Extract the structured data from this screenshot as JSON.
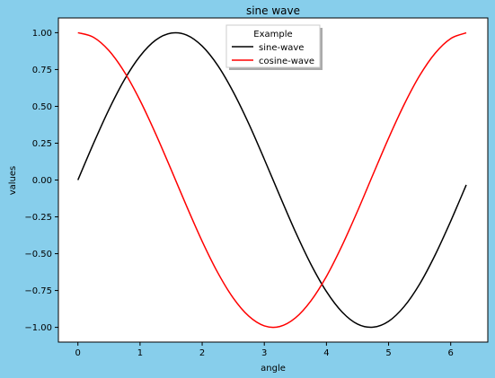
{
  "figure": {
    "background": "#87ceeb"
  },
  "chart_data": {
    "type": "line",
    "title": "sine wave",
    "xlabel": "angle",
    "ylabel": "values",
    "xlim": [
      -0.314,
      6.597
    ],
    "ylim": [
      -1.1,
      1.1
    ],
    "xticks": [
      0,
      1,
      2,
      3,
      4,
      5,
      6
    ],
    "xtick_labels": [
      "0",
      "1",
      "2",
      "3",
      "4",
      "5",
      "6"
    ],
    "yticks": [
      1.0,
      0.75,
      0.5,
      0.25,
      0.0,
      -0.25,
      -0.5,
      -0.75,
      -1.0
    ],
    "ytick_labels": [
      "1.00",
      "0.75",
      "0.50",
      "0.25",
      "0.00",
      "−0.25",
      "−0.50",
      "−0.75",
      "−1.00"
    ],
    "grid": false,
    "legend": {
      "title": "Example",
      "placement": "top-center"
    },
    "x": [
      0.0,
      0.25,
      0.5,
      0.75,
      1.0,
      1.25,
      1.5,
      1.75,
      2.0,
      2.25,
      2.5,
      2.75,
      3.0,
      3.25,
      3.5,
      3.75,
      4.0,
      4.25,
      4.5,
      4.75,
      5.0,
      5.25,
      5.5,
      5.75,
      6.0,
      6.25
    ],
    "series": [
      {
        "name": "sine-wave",
        "color": "#000000",
        "values": [
          0.0,
          0.247,
          0.479,
          0.682,
          0.841,
          0.949,
          0.997,
          0.984,
          0.909,
          0.778,
          0.598,
          0.382,
          0.141,
          -0.108,
          -0.351,
          -0.572,
          -0.757,
          -0.895,
          -0.978,
          -0.999,
          -0.959,
          -0.859,
          -0.706,
          -0.508,
          -0.279,
          -0.033
        ]
      },
      {
        "name": "cosine-wave",
        "color": "#ff0000",
        "values": [
          1.0,
          0.969,
          0.878,
          0.732,
          0.54,
          0.315,
          0.071,
          -0.178,
          -0.416,
          -0.628,
          -0.801,
          -0.924,
          -0.99,
          -0.994,
          -0.936,
          -0.82,
          -0.654,
          -0.446,
          -0.211,
          0.038,
          0.284,
          0.512,
          0.709,
          0.861,
          0.96,
          0.999
        ]
      }
    ]
  }
}
